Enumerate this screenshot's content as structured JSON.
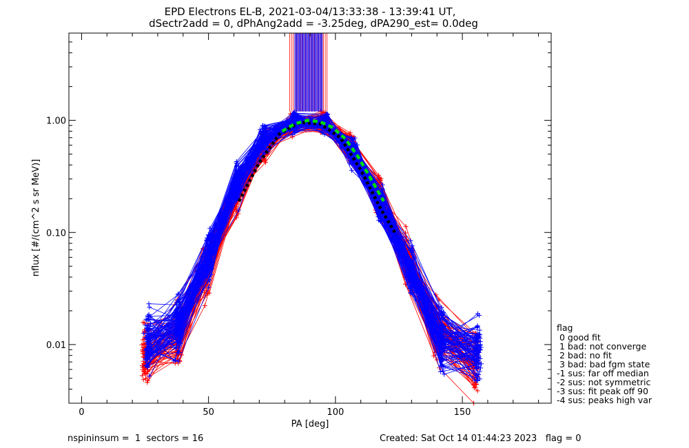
{
  "title_line1": "EPD Electrons EL-B, 2021-03-04/13:33:38 - 13:39:41 UT,",
  "title_line2": "dSectr2add = 0, dPhAng2add = -3.25deg, dPA290_est=   0.0deg",
  "footer": {
    "left": "nspininsum =  1  sectors = 16",
    "right": "Created: Sat Oct 14 01:44:23 2023   flag = 0"
  },
  "legend": {
    "title": "flag",
    "items": [
      " 0 good fit",
      " 1 bad: not converge",
      " 2 bad: no fit",
      " 3 bad: bad fgm state",
      "-1 sus: far off median",
      "-2 sus: not symmetric",
      "-3 sus: fit peak off 90",
      "-4 sus: peaks high var"
    ]
  },
  "colors": {
    "series_a": "#ff0000",
    "series_b": "#0000ff",
    "fit_black": "#000000",
    "fit_green": "#00dd00"
  },
  "chart_data": {
    "type": "line",
    "xlabel": "PA [deg]",
    "ylabel": "nflux [#/(cm^2 s sr MeV)]",
    "xlim": [
      -5,
      185
    ],
    "ylim": [
      0.003,
      6
    ],
    "y_scale": "log",
    "x_ticks": [
      0,
      50,
      100,
      150
    ],
    "x_tick_labels": [
      "0",
      "50",
      "100",
      "150"
    ],
    "y_ticks": [
      0.01,
      0.1,
      1.0
    ],
    "y_tick_labels": [
      "0.01",
      "0.10",
      "1.00"
    ],
    "grid": false,
    "legend_position": "right",
    "series": [
      {
        "color": "red",
        "x": [
          25,
          38,
          49,
          61,
          72,
          83,
          95,
          106,
          117,
          128,
          140,
          155
        ],
        "y": [
          0.008,
          0.012,
          0.045,
          0.22,
          0.6,
          0.93,
          0.95,
          0.58,
          0.22,
          0.06,
          0.014,
          0.007
        ]
      },
      {
        "color": "blue",
        "x": [
          26,
          38,
          50,
          61,
          72,
          84,
          96,
          107,
          118,
          130,
          142,
          156
        ],
        "y": [
          0.011,
          0.015,
          0.06,
          0.28,
          0.7,
          0.97,
          0.93,
          0.52,
          0.17,
          0.045,
          0.011,
          0.009
        ]
      },
      {
        "color": "black",
        "style": "dotted",
        "x": [
          62,
          70,
          78,
          86,
          94,
          102,
          110,
          118,
          124
        ],
        "y": [
          0.19,
          0.42,
          0.76,
          0.96,
          0.93,
          0.7,
          0.36,
          0.16,
          0.095
        ]
      },
      {
        "color": "green",
        "style": "dashed",
        "x": [
          79,
          84,
          89,
          94,
          99,
          104,
          109,
          114,
          119
        ],
        "y": [
          0.8,
          0.93,
          1.0,
          0.97,
          0.86,
          0.68,
          0.47,
          0.3,
          0.19
        ]
      }
    ]
  }
}
